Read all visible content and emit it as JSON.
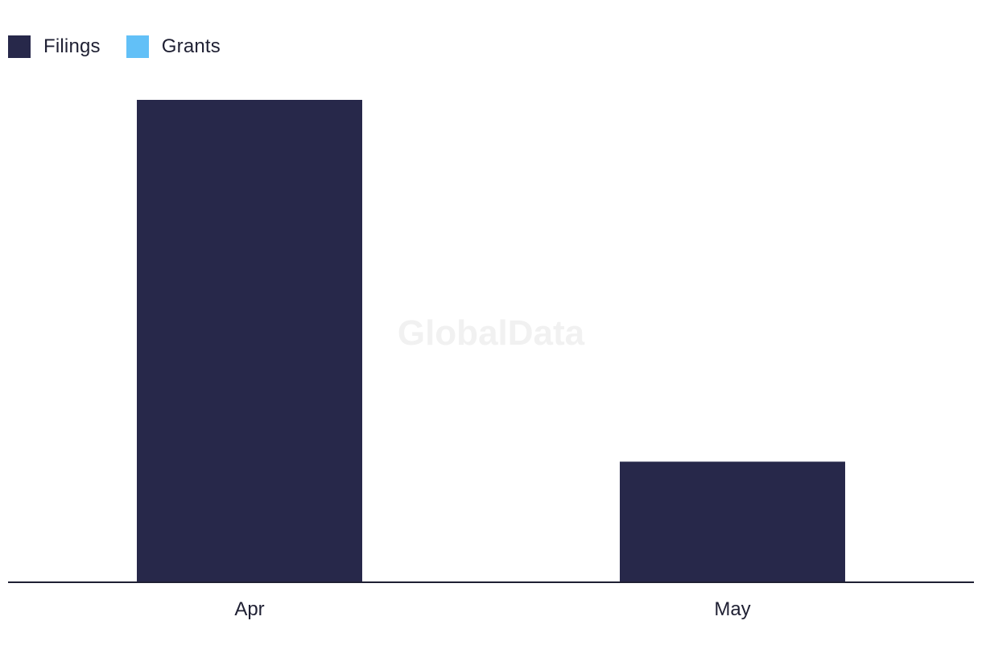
{
  "legend": {
    "items": [
      {
        "label": "Filings",
        "color": "#27284a"
      },
      {
        "label": "Grants",
        "color": "#62c0f7"
      }
    ]
  },
  "watermark": "GlobalData",
  "chart_data": {
    "type": "bar",
    "categories": [
      "Apr",
      "May"
    ],
    "series": [
      {
        "name": "Filings",
        "color": "#27284a",
        "values": [
          4,
          1
        ]
      },
      {
        "name": "Grants",
        "color": "#62c0f7",
        "values": [
          0,
          0
        ]
      }
    ],
    "xlabel": "",
    "ylabel": "",
    "ylim": [
      0,
      4
    ],
    "grid": false,
    "legend_position": "top-left"
  }
}
